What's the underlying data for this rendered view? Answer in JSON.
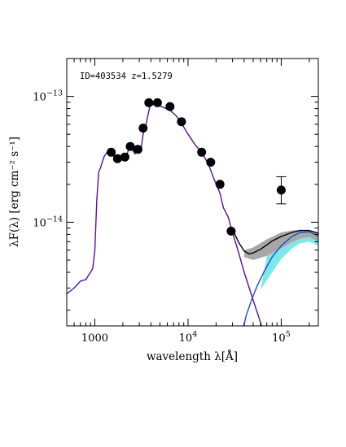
{
  "chart_data": {
    "type": "scatter",
    "xlabel": "wavelength λ[Å]",
    "ylabel": "λF(λ) [erg cm⁻² s⁻¹]",
    "annotation": "ID=403534 z=1.5279",
    "xscale": "log",
    "yscale": "log",
    "xlim": [
      500,
      250000
    ],
    "ylim": [
      1.5e-15,
      2e-13
    ],
    "x_tick_labels": [
      {
        "value": 1000,
        "base": "1000",
        "exp": ""
      },
      {
        "value": 10000,
        "base": "10",
        "exp": "4"
      },
      {
        "value": 100000,
        "base": "10",
        "exp": "5"
      }
    ],
    "y_tick_labels": [
      {
        "value": 1e-13,
        "base": "10",
        "exp": "−13"
      },
      {
        "value": 1e-14,
        "base": "10",
        "exp": "−14"
      }
    ],
    "observed_points": [
      {
        "x": 1500,
        "y": 3.6e-14
      },
      {
        "x": 1750,
        "y": 3.2e-14
      },
      {
        "x": 2100,
        "y": 3.3e-14
      },
      {
        "x": 2400,
        "y": 4e-14
      },
      {
        "x": 2900,
        "y": 3.8e-14
      },
      {
        "x": 3300,
        "y": 5.6e-14
      },
      {
        "x": 3800,
        "y": 8.9e-14
      },
      {
        "x": 4700,
        "y": 8.9e-14
      },
      {
        "x": 6400,
        "y": 8.3e-14
      },
      {
        "x": 8500,
        "y": 6.3e-14
      },
      {
        "x": 14000,
        "y": 3.6e-14
      },
      {
        "x": 17500,
        "y": 3e-14
      },
      {
        "x": 22000,
        "y": 2e-14
      },
      {
        "x": 29000,
        "y": 8.5e-15
      },
      {
        "x": 100000,
        "y": 1.8e-14,
        "yerr_low": 1.4e-14,
        "yerr_high": 2.3e-14
      }
    ],
    "stellar_model": [
      [
        500,
        2.7e-15
      ],
      [
        600,
        3e-15
      ],
      [
        700,
        3.4e-15
      ],
      [
        800,
        3.5e-15
      ],
      [
        900,
        4e-15
      ],
      [
        950,
        4.3e-15
      ],
      [
        1000,
        6e-15
      ],
      [
        1050,
        1.5e-14
      ],
      [
        1100,
        2.5e-14
      ],
      [
        1150,
        2.7e-14
      ],
      [
        1250,
        3.3e-14
      ],
      [
        1350,
        3.6e-14
      ],
      [
        1450,
        3.4e-14
      ],
      [
        1550,
        3.6e-14
      ],
      [
        1650,
        3.2e-14
      ],
      [
        1800,
        3.4e-14
      ],
      [
        2000,
        3.3e-14
      ],
      [
        2150,
        3.2e-14
      ],
      [
        2300,
        3.8e-14
      ],
      [
        2500,
        3.8e-14
      ],
      [
        2700,
        3.5e-14
      ],
      [
        2900,
        3.8e-14
      ],
      [
        3100,
        3.6e-14
      ],
      [
        3300,
        5e-14
      ],
      [
        3500,
        5.7e-14
      ],
      [
        3700,
        7e-14
      ],
      [
        3900,
        8.3e-14
      ],
      [
        4200,
        8.6e-14
      ],
      [
        4600,
        8.5e-14
      ],
      [
        5200,
        8.3e-14
      ],
      [
        5800,
        8e-14
      ],
      [
        6500,
        7.7e-14
      ],
      [
        7500,
        7e-14
      ],
      [
        8500,
        6.1e-14
      ],
      [
        10000,
        5e-14
      ],
      [
        12000,
        4.1e-14
      ],
      [
        14000,
        3.6e-14
      ],
      [
        16500,
        2.9e-14
      ],
      [
        19000,
        2.2e-14
      ],
      [
        22000,
        1.7e-14
      ],
      [
        24000,
        1.3e-14
      ],
      [
        27000,
        1.1e-14
      ],
      [
        30000,
        8.3e-15
      ],
      [
        35000,
        5.7e-15
      ],
      [
        40000,
        4e-15
      ],
      [
        50000,
        2.4e-15
      ],
      [
        60000,
        1.6e-15
      ],
      [
        65000,
        1.3e-15
      ]
    ],
    "dust_model": [
      [
        38000,
        1.3e-15
      ],
      [
        42000,
        1.8e-15
      ],
      [
        48000,
        2.4e-15
      ],
      [
        55000,
        3.1e-15
      ],
      [
        65000,
        4e-15
      ],
      [
        80000,
        5.3e-15
      ],
      [
        100000,
        6.5e-15
      ],
      [
        130000,
        7.7e-15
      ],
      [
        160000,
        8.3e-15
      ],
      [
        200000,
        8.4e-15
      ],
      [
        250000,
        7.8e-15
      ]
    ],
    "total_model": [
      [
        30000,
        8.8e-15
      ],
      [
        35000,
        6.9e-15
      ],
      [
        40000,
        5.9e-15
      ],
      [
        45000,
        5.6e-15
      ],
      [
        50000,
        5.7e-15
      ],
      [
        60000,
        6.1e-15
      ],
      [
        70000,
        6.6e-15
      ],
      [
        80000,
        7.1e-15
      ],
      [
        100000,
        7.7e-15
      ],
      [
        130000,
        8.3e-15
      ],
      [
        160000,
        8.6e-15
      ],
      [
        200000,
        8.6e-15
      ],
      [
        250000,
        8.2e-15
      ]
    ],
    "total_band_upper": [
      [
        40000,
        6e-15
      ],
      [
        50000,
        6.3e-15
      ],
      [
        70000,
        7.3e-15
      ],
      [
        100000,
        8.3e-15
      ],
      [
        130000,
        8.6e-15
      ],
      [
        160000,
        8.7e-15
      ],
      [
        200000,
        8.6e-15
      ],
      [
        250000,
        8.3e-15
      ]
    ],
    "total_band_lower": [
      [
        40000,
        5.3e-15
      ],
      [
        50000,
        5e-15
      ],
      [
        70000,
        5.4e-15
      ],
      [
        100000,
        6.2e-15
      ],
      [
        130000,
        6.9e-15
      ],
      [
        160000,
        7.4e-15
      ],
      [
        200000,
        7.6e-15
      ],
      [
        250000,
        7e-15
      ]
    ],
    "dust_band_lower": [
      [
        60000,
        2.9e-15
      ],
      [
        80000,
        4e-15
      ],
      [
        100000,
        5.1e-15
      ],
      [
        130000,
        6.2e-15
      ],
      [
        160000,
        6.8e-15
      ],
      [
        200000,
        7e-15
      ],
      [
        250000,
        6.5e-15
      ]
    ],
    "colors": {
      "observed": "#000000",
      "stellar": "#5a0f9c",
      "dust": "#1a4fd0",
      "total": "#000000",
      "total_band": "#a7a7a7",
      "dust_band": "#7fe7e7"
    }
  }
}
